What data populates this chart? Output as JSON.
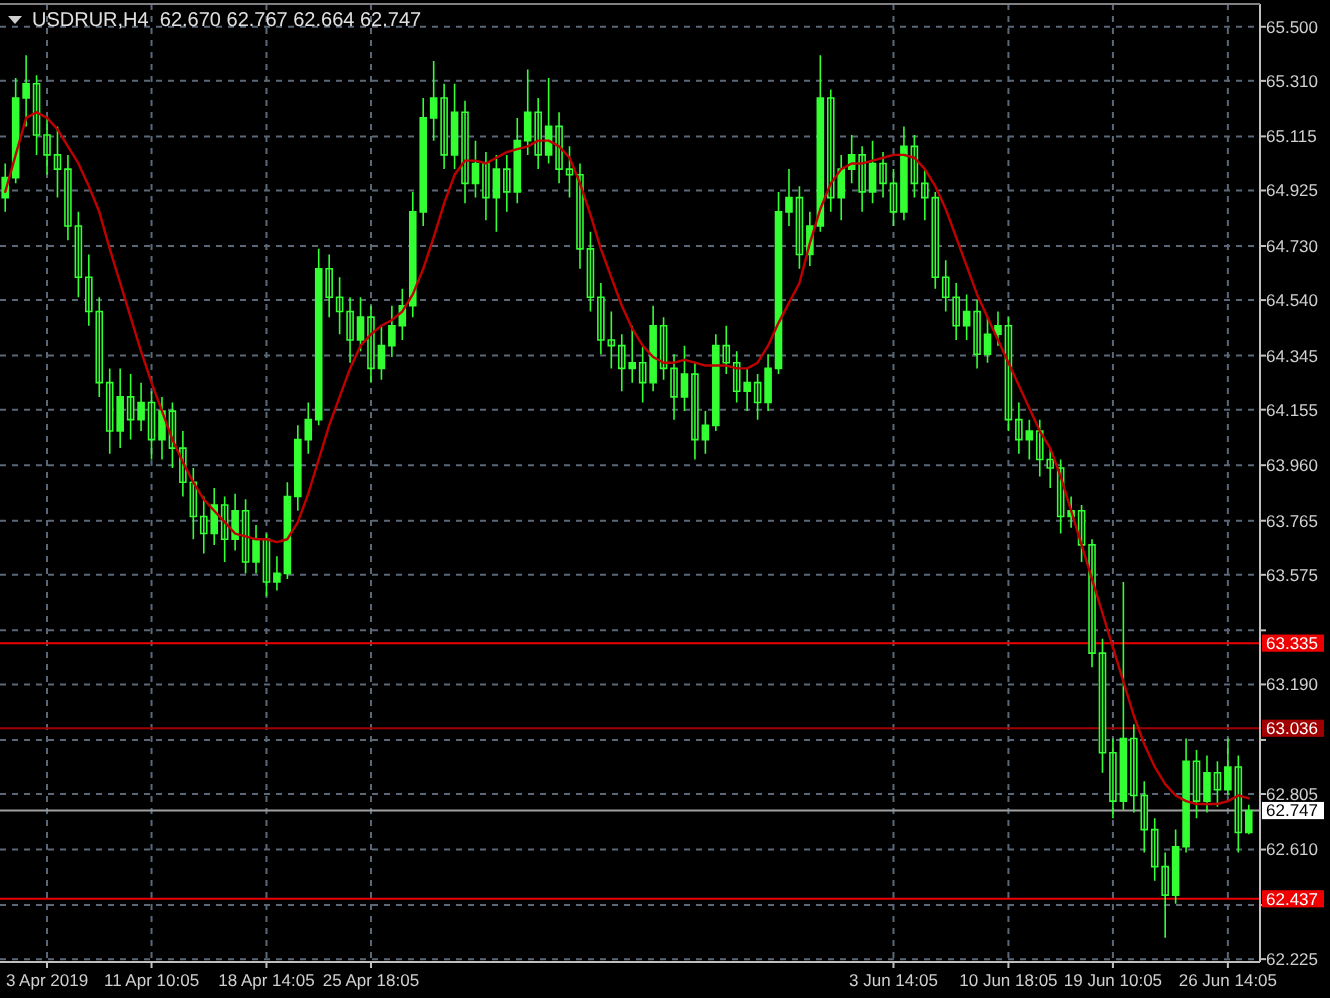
{
  "chart_data": {
    "type": "candlestick",
    "title": "USDRUR,H4  62.670 62.767 62.664 62.747",
    "categories": [
      null,
      null,
      null,
      null,
      "3 Apr 2019",
      null,
      null,
      null,
      null,
      null,
      null,
      null,
      null,
      null,
      "11 Apr 10:05",
      null,
      null,
      null,
      null,
      null,
      null,
      null,
      null,
      null,
      null,
      "18 Apr 14:05",
      null,
      null,
      null,
      null,
      null,
      null,
      null,
      null,
      null,
      "25 Apr 18:05",
      null,
      null,
      null,
      null,
      null,
      null,
      null,
      null,
      null,
      null,
      null,
      null,
      null,
      null,
      null,
      null,
      null,
      null,
      null,
      null,
      null,
      null,
      null,
      null,
      null,
      null,
      null,
      null,
      null,
      null,
      null,
      null,
      null,
      null,
      null,
      null,
      null,
      null,
      null,
      null,
      null,
      null,
      null,
      null,
      null,
      null,
      null,
      null,
      null,
      "3 Jun 14:05",
      null,
      null,
      null,
      null,
      null,
      null,
      null,
      null,
      null,
      null,
      "10 Jun 18:05",
      null,
      null,
      null,
      null,
      null,
      null,
      null,
      null,
      null,
      "19 Jun 10:05",
      null,
      null,
      null,
      null,
      null,
      null,
      null,
      null,
      null,
      null,
      "26 Jun 14:05",
      null,
      null
    ],
    "series": [
      {
        "type": "line",
        "color": "#c00000",
        "values": [
          64.92,
          65.05,
          65.18,
          65.2,
          65.18,
          65.14,
          65.08,
          65.02,
          64.94,
          64.85,
          64.72,
          64.6,
          64.48,
          64.36,
          64.25,
          64.15,
          64.05,
          63.97,
          63.9,
          63.84,
          63.8,
          63.76,
          63.72,
          63.71,
          63.7,
          63.7,
          63.69,
          63.7,
          63.76,
          63.86,
          63.98,
          64.1,
          64.2,
          64.3,
          64.38,
          64.42,
          64.45,
          64.47,
          64.5,
          64.56,
          64.65,
          64.76,
          64.88,
          64.98,
          65.03,
          65.03,
          65.02,
          65.04,
          65.06,
          65.07,
          65.08,
          65.1,
          65.1,
          65.08,
          65.04,
          64.95,
          64.84,
          64.72,
          64.62,
          64.52,
          64.44,
          64.38,
          64.34,
          64.32,
          64.32,
          64.33,
          64.32,
          64.31,
          64.31,
          64.31,
          64.3,
          64.3,
          64.32,
          64.38,
          64.46,
          64.53,
          64.6,
          64.74,
          64.86,
          64.95,
          65.0,
          65.02,
          65.02,
          65.03,
          65.04,
          65.05,
          65.05,
          65.04,
          65.0,
          64.94,
          64.86,
          64.76,
          64.66,
          64.56,
          64.48,
          64.4,
          64.32,
          64.24,
          64.16,
          64.08,
          64.02,
          63.92,
          63.8,
          63.68,
          63.56,
          63.44,
          63.32,
          63.2,
          63.08,
          62.98,
          62.9,
          62.84,
          62.8,
          62.78,
          62.77,
          62.77,
          62.77,
          62.78,
          62.8,
          62.79
        ]
      },
      {
        "type": "candlestick",
        "color": "#33ff33",
        "ohlc": [
          [
            64.9,
            65.02,
            64.85,
            64.97
          ],
          [
            64.97,
            65.32,
            64.95,
            65.25
          ],
          [
            65.25,
            65.4,
            65.15,
            65.3
          ],
          [
            65.3,
            65.33,
            65.05,
            65.12
          ],
          [
            65.12,
            65.18,
            64.98,
            65.05
          ],
          [
            65.05,
            65.15,
            64.9,
            65.0
          ],
          [
            65.0,
            65.05,
            64.75,
            64.8
          ],
          [
            64.8,
            64.85,
            64.55,
            64.62
          ],
          [
            64.62,
            64.7,
            64.45,
            64.5
          ],
          [
            64.5,
            64.55,
            64.2,
            64.25
          ],
          [
            64.25,
            64.3,
            64.0,
            64.08
          ],
          [
            64.08,
            64.3,
            64.02,
            64.2
          ],
          [
            64.2,
            64.28,
            64.05,
            64.12
          ],
          [
            64.12,
            64.25,
            64.08,
            64.18
          ],
          [
            64.18,
            64.22,
            63.98,
            64.05
          ],
          [
            64.05,
            64.2,
            63.98,
            64.15
          ],
          [
            64.15,
            64.18,
            63.95,
            64.02
          ],
          [
            64.02,
            64.08,
            63.85,
            63.9
          ],
          [
            63.9,
            63.95,
            63.7,
            63.78
          ],
          [
            63.78,
            63.85,
            63.65,
            63.72
          ],
          [
            63.72,
            63.88,
            63.68,
            63.82
          ],
          [
            63.82,
            63.85,
            63.62,
            63.7
          ],
          [
            63.7,
            63.86,
            63.66,
            63.8
          ],
          [
            63.8,
            63.84,
            63.58,
            63.62
          ],
          [
            63.62,
            63.75,
            63.58,
            63.7
          ],
          [
            63.7,
            63.72,
            63.5,
            63.55
          ],
          [
            63.55,
            63.64,
            63.52,
            63.58
          ],
          [
            63.58,
            63.9,
            63.56,
            63.85
          ],
          [
            63.85,
            64.1,
            63.8,
            64.05
          ],
          [
            64.05,
            64.18,
            64.0,
            64.12
          ],
          [
            64.12,
            64.72,
            64.1,
            64.65
          ],
          [
            64.65,
            64.7,
            64.48,
            64.55
          ],
          [
            64.55,
            64.62,
            64.42,
            64.5
          ],
          [
            64.5,
            64.55,
            64.32,
            64.4
          ],
          [
            64.4,
            64.55,
            64.36,
            64.48
          ],
          [
            64.48,
            64.52,
            64.25,
            64.3
          ],
          [
            64.3,
            64.45,
            64.26,
            64.38
          ],
          [
            64.38,
            64.52,
            64.34,
            64.45
          ],
          [
            64.45,
            64.58,
            64.4,
            64.52
          ],
          [
            64.52,
            64.92,
            64.48,
            64.85
          ],
          [
            64.85,
            65.25,
            64.8,
            65.18
          ],
          [
            65.18,
            65.38,
            65.1,
            65.25
          ],
          [
            65.25,
            65.3,
            65.0,
            65.05
          ],
          [
            65.05,
            65.3,
            65.0,
            65.2
          ],
          [
            65.2,
            65.24,
            64.88,
            64.95
          ],
          [
            64.95,
            65.1,
            64.9,
            65.02
          ],
          [
            65.02,
            65.06,
            64.82,
            64.9
          ],
          [
            64.9,
            65.05,
            64.78,
            65.0
          ],
          [
            65.0,
            65.05,
            64.85,
            64.92
          ],
          [
            64.92,
            65.18,
            64.88,
            65.1
          ],
          [
            65.1,
            65.35,
            65.05,
            65.2
          ],
          [
            65.2,
            65.25,
            65.0,
            65.05
          ],
          [
            65.05,
            65.32,
            65.02,
            65.15
          ],
          [
            65.15,
            65.2,
            64.95,
            65.0
          ],
          [
            65.0,
            65.08,
            64.9,
            64.98
          ],
          [
            64.98,
            65.02,
            64.65,
            64.72
          ],
          [
            64.72,
            64.78,
            64.5,
            64.55
          ],
          [
            64.55,
            64.6,
            64.35,
            64.4
          ],
          [
            64.4,
            64.5,
            64.3,
            64.38
          ],
          [
            64.38,
            64.42,
            64.22,
            64.3
          ],
          [
            64.3,
            64.45,
            64.25,
            64.32
          ],
          [
            64.32,
            64.38,
            64.18,
            64.25
          ],
          [
            64.25,
            64.52,
            64.22,
            64.45
          ],
          [
            64.45,
            64.48,
            64.26,
            64.3
          ],
          [
            64.3,
            64.35,
            64.12,
            64.2
          ],
          [
            64.2,
            64.38,
            64.15,
            64.28
          ],
          [
            64.28,
            64.32,
            63.98,
            64.05
          ],
          [
            64.05,
            64.15,
            64.0,
            64.1
          ],
          [
            64.1,
            64.42,
            64.08,
            64.38
          ],
          [
            64.38,
            64.45,
            64.28,
            64.32
          ],
          [
            64.32,
            64.36,
            64.18,
            64.22
          ],
          [
            64.22,
            64.3,
            64.15,
            64.25
          ],
          [
            64.25,
            64.28,
            64.12,
            64.18
          ],
          [
            64.18,
            64.35,
            64.15,
            64.3
          ],
          [
            64.3,
            64.92,
            64.28,
            64.85
          ],
          [
            64.85,
            65.0,
            64.8,
            64.9
          ],
          [
            64.9,
            64.94,
            64.65,
            64.7
          ],
          [
            64.7,
            64.85,
            64.66,
            64.8
          ],
          [
            64.8,
            65.4,
            64.78,
            65.25
          ],
          [
            65.25,
            65.28,
            64.85,
            64.9
          ],
          [
            64.9,
            65.05,
            64.82,
            65.0
          ],
          [
            65.0,
            65.12,
            64.95,
            65.05
          ],
          [
            65.05,
            65.08,
            64.85,
            64.92
          ],
          [
            64.92,
            65.1,
            64.88,
            65.02
          ],
          [
            65.02,
            65.06,
            64.9,
            64.95
          ],
          [
            64.95,
            65.0,
            64.8,
            64.85
          ],
          [
            64.85,
            65.15,
            64.82,
            65.08
          ],
          [
            65.08,
            65.12,
            64.9,
            64.95
          ],
          [
            64.95,
            65.0,
            64.82,
            64.9
          ],
          [
            64.9,
            64.92,
            64.58,
            64.62
          ],
          [
            64.62,
            64.68,
            64.5,
            64.55
          ],
          [
            64.55,
            64.6,
            64.4,
            64.45
          ],
          [
            64.45,
            64.56,
            64.4,
            64.5
          ],
          [
            64.5,
            64.54,
            64.3,
            64.35
          ],
          [
            64.35,
            64.48,
            64.32,
            64.42
          ],
          [
            64.42,
            64.5,
            64.38,
            64.45
          ],
          [
            64.45,
            64.48,
            64.08,
            64.12
          ],
          [
            64.12,
            64.18,
            64.0,
            64.05
          ],
          [
            64.05,
            64.12,
            63.98,
            64.08
          ],
          [
            64.08,
            64.12,
            63.92,
            63.98
          ],
          [
            63.98,
            64.02,
            63.88,
            63.95
          ],
          [
            63.95,
            63.98,
            63.72,
            63.78
          ],
          [
            63.78,
            63.85,
            63.74,
            63.8
          ],
          [
            63.8,
            63.82,
            63.62,
            63.68
          ],
          [
            63.68,
            63.7,
            63.25,
            63.3
          ],
          [
            63.3,
            63.35,
            62.88,
            62.95
          ],
          [
            62.95,
            63.0,
            62.72,
            62.78
          ],
          [
            62.78,
            63.55,
            62.75,
            63.0
          ],
          [
            63.0,
            63.05,
            62.74,
            62.8
          ],
          [
            62.8,
            62.85,
            62.6,
            62.68
          ],
          [
            62.68,
            62.72,
            62.5,
            62.55
          ],
          [
            62.55,
            62.6,
            62.3,
            62.45
          ],
          [
            62.45,
            62.68,
            62.42,
            62.62
          ],
          [
            62.62,
            63.0,
            62.6,
            62.92
          ],
          [
            62.92,
            62.96,
            62.72,
            62.78
          ],
          [
            62.78,
            62.94,
            62.74,
            62.88
          ],
          [
            62.88,
            62.92,
            62.76,
            62.82
          ],
          [
            62.82,
            63.0,
            62.8,
            62.9
          ],
          [
            62.9,
            62.94,
            62.6,
            62.67
          ],
          [
            62.67,
            62.767,
            62.664,
            62.747
          ]
        ]
      }
    ],
    "ylim": [
      62.215,
      65.58
    ],
    "yticks": [
      {
        "value": 65.5,
        "label": "65.500"
      },
      {
        "value": 65.31,
        "label": "65.310"
      },
      {
        "value": 65.115,
        "label": "65.115"
      },
      {
        "value": 64.925,
        "label": "64.925"
      },
      {
        "value": 64.73,
        "label": "64.730"
      },
      {
        "value": 64.54,
        "label": "64.540"
      },
      {
        "value": 64.345,
        "label": "64.345"
      },
      {
        "value": 64.155,
        "label": "64.155"
      },
      {
        "value": 63.96,
        "label": "63.960"
      },
      {
        "value": 63.765,
        "label": "63.765"
      },
      {
        "value": 63.575,
        "label": "63.575"
      },
      {
        "value": 63.38,
        "label": null
      },
      {
        "value": 63.19,
        "label": "63.190"
      },
      {
        "value": 62.995,
        "label": null
      },
      {
        "value": 62.805,
        "label": "62.805"
      },
      {
        "value": 62.61,
        "label": "62.610"
      },
      {
        "value": 62.415,
        "label": null
      },
      {
        "value": 62.225,
        "label": "62.225"
      }
    ],
    "ref_lines": [
      {
        "axis": "y",
        "value": 63.335,
        "label": "63.335",
        "color": "#ee0000"
      },
      {
        "axis": "y",
        "value": 63.036,
        "label": "63.036",
        "color": "#a00000"
      },
      {
        "axis": "y",
        "value": 62.747,
        "label": "62.747",
        "color": "#a0a0a0"
      },
      {
        "axis": "y",
        "value": 62.437,
        "label": "62.437",
        "color": "#ee0000"
      }
    ],
    "grid": true
  }
}
